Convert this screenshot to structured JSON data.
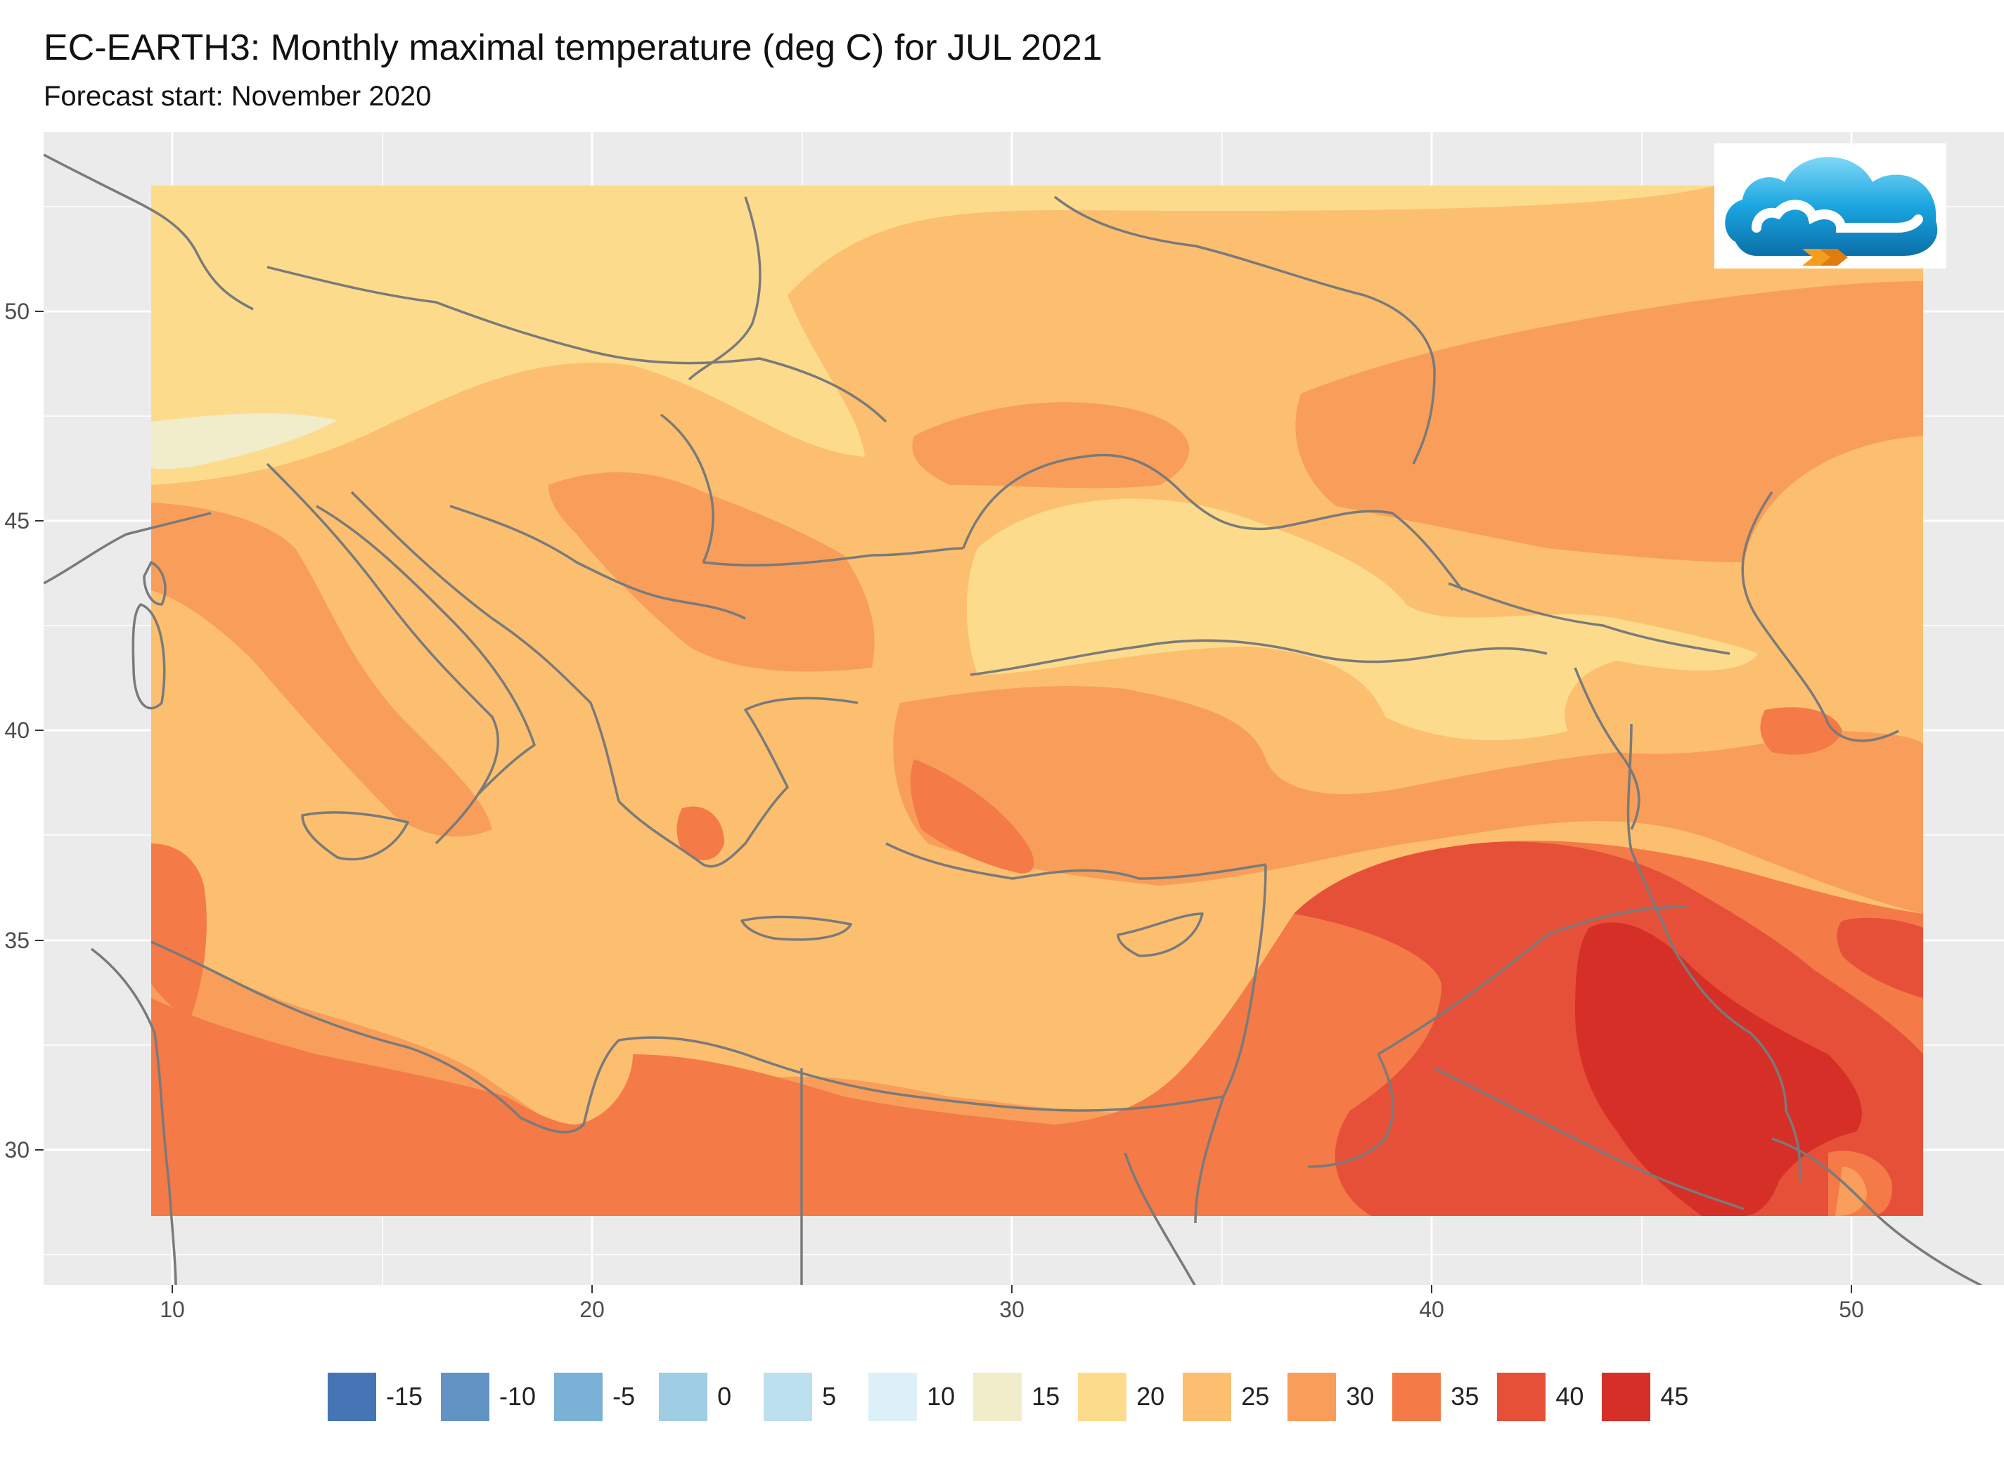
{
  "header": {
    "title": "EC-EARTH3: Monthly maximal temperature (deg C) for JUL 2021",
    "subtitle": "Forecast start: November 2020"
  },
  "axes": {
    "x_ticks": [
      "10",
      "20",
      "30",
      "40",
      "50"
    ],
    "y_ticks": [
      "50",
      "45",
      "40",
      "35",
      "30"
    ]
  },
  "legend": [
    {
      "label": "-15",
      "color": "#4575b4"
    },
    {
      "label": "-10",
      "color": "#6194c5"
    },
    {
      "label": "-5",
      "color": "#7bb0d7"
    },
    {
      "label": "0",
      "color": "#9ecde4"
    },
    {
      "label": "5",
      "color": "#bce0ee"
    },
    {
      "label": "10",
      "color": "#dcf1f7"
    },
    {
      "label": "15",
      "color": "#f1ecc9"
    },
    {
      "label": "20",
      "color": "#fcdc8c"
    },
    {
      "label": "25",
      "color": "#fcbf6f"
    },
    {
      "label": "30",
      "color": "#f89e5a"
    },
    {
      "label": "35",
      "color": "#f47a48"
    },
    {
      "label": "40",
      "color": "#e65038"
    },
    {
      "label": "45",
      "color": "#d62f27"
    }
  ],
  "logo": {
    "icon": "cloud-logo-icon"
  }
}
